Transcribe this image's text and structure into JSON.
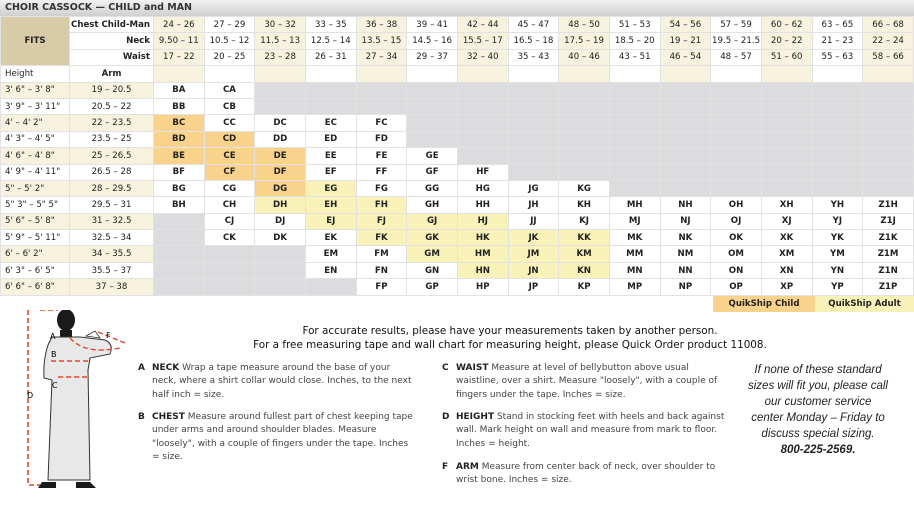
{
  "title": "CHOIR CASSOCK — CHILD and MAN",
  "fits_label": "FITS",
  "row_labels": {
    "chest": "Chest Child-Man",
    "neck": "Neck",
    "waist": "Waist",
    "height": "Height",
    "arm": "Arm"
  },
  "sizes": [
    {
      "chest": "24 – 26",
      "neck": "9.50 – 11",
      "waist": "17 – 22"
    },
    {
      "chest": "27 – 29",
      "neck": "10.5 – 12",
      "waist": "20 – 25"
    },
    {
      "chest": "30 – 32",
      "neck": "11.5 – 13",
      "waist": "23 – 28"
    },
    {
      "chest": "33 – 35",
      "neck": "12.5 – 14",
      "waist": "26 – 31"
    },
    {
      "chest": "36 – 38",
      "neck": "13.5 – 15",
      "waist": "27 – 34"
    },
    {
      "chest": "39 – 41",
      "neck": "14.5 – 16",
      "waist": "29 – 37"
    },
    {
      "chest": "42 – 44",
      "neck": "15.5 – 17",
      "waist": "32 – 40"
    },
    {
      "chest": "45 – 47",
      "neck": "16.5 – 18",
      "waist": "35 – 43"
    },
    {
      "chest": "48 – 50",
      "neck": "17.5 – 19",
      "waist": "40 – 46"
    },
    {
      "chest": "51 – 53",
      "neck": "18.5 – 20",
      "waist": "43 – 51"
    },
    {
      "chest": "54 – 56",
      "neck": "19 – 21",
      "waist": "46 – 54"
    },
    {
      "chest": "57 – 59",
      "neck": "19.5 – 21.5",
      "waist": "48 – 57"
    },
    {
      "chest": "60 – 62",
      "neck": "20 – 22",
      "waist": "51 – 60"
    },
    {
      "chest": "63 – 65",
      "neck": "21 – 23",
      "waist": "55 – 63"
    },
    {
      "chest": "66 – 68",
      "neck": "22 – 24",
      "waist": "58 – 66"
    }
  ],
  "rows": [
    {
      "height": "3' 6\" – 3' 8\"",
      "arm": "19 – 20.5",
      "cells": [
        "BA:w",
        "CA:w",
        ":g",
        ":g",
        ":g",
        ":g",
        ":g",
        ":g",
        ":g",
        ":g",
        ":g",
        ":g",
        ":g",
        ":g",
        ":g"
      ]
    },
    {
      "height": "3' 9\" – 3' 11\"",
      "arm": "20.5 – 22",
      "cells": [
        "BB:w",
        "CB:w",
        ":g",
        ":g",
        ":g",
        ":g",
        ":g",
        ":g",
        ":g",
        ":g",
        ":g",
        ":g",
        ":g",
        ":g",
        ":g"
      ]
    },
    {
      "height": "4' – 4' 2\"",
      "arm": "22 – 23.5",
      "cells": [
        "BC:o",
        "CC:w",
        "DC:w",
        "EC:w",
        "FC:w",
        ":g",
        ":g",
        ":g",
        ":g",
        ":g",
        ":g",
        ":g",
        ":g",
        ":g",
        ":g"
      ]
    },
    {
      "height": "4' 3\" – 4' 5\"",
      "arm": "23.5 – 25",
      "cells": [
        "BD:o",
        "CD:o",
        "DD:w",
        "ED:w",
        "FD:w",
        ":g",
        ":g",
        ":g",
        ":g",
        ":g",
        ":g",
        ":g",
        ":g",
        ":g",
        ":g"
      ]
    },
    {
      "height": "4' 6\" – 4' 8\"",
      "arm": "25 – 26.5",
      "cells": [
        "BE:o",
        "CE:o",
        "DE:o",
        "EE:w",
        "FE:w",
        "GE:w",
        ":g",
        ":g",
        ":g",
        ":g",
        ":g",
        ":g",
        ":g",
        ":g",
        ":g"
      ]
    },
    {
      "height": "4' 9\" – 4' 11\"",
      "arm": "26.5 – 28",
      "cells": [
        "BF:w",
        "CF:o",
        "DF:o",
        "EF:w",
        "FF:w",
        "GF:w",
        "HF:w",
        ":g",
        ":g",
        ":g",
        ":g",
        ":g",
        ":g",
        ":g",
        ":g"
      ]
    },
    {
      "height": "5\" – 5' 2\"",
      "arm": "28 – 29.5",
      "cells": [
        "BG:w",
        "CG:w",
        "DG:o",
        "EG:y",
        "FG:w",
        "GG:w",
        "HG:w",
        "JG:w",
        "KG:w",
        ":g",
        ":g",
        ":g",
        ":g",
        ":g",
        ":g"
      ]
    },
    {
      "height": "5\" 3\" – 5\" 5\"",
      "arm": "29.5 – 31",
      "cells": [
        "BH:w",
        "CH:w",
        "DH:y",
        "EH:y",
        "FH:y",
        "GH:w",
        "HH:w",
        "JH:w",
        "KH:w",
        "MH:w",
        "NH:w",
        "OH:w",
        "XH:w",
        "YH:w",
        "Z1H:w"
      ]
    },
    {
      "height": "5' 6\" – 5' 8\"",
      "arm": "31 – 32.5",
      "cells": [
        ":g",
        "CJ:w",
        "DJ:w",
        "EJ:y",
        "FJ:y",
        "GJ:y",
        "HJ:y",
        "JJ:w",
        "KJ:w",
        "MJ:w",
        "NJ:w",
        "OJ:w",
        "XJ:w",
        "YJ:w",
        "Z1J:w"
      ]
    },
    {
      "height": "5' 9\" – 5' 11\"",
      "arm": "32.5 – 34",
      "cells": [
        ":g",
        "CK:w",
        "DK:w",
        "EK:w",
        "FK:y",
        "GK:y",
        "HK:y",
        "JK:y",
        "KK:y",
        "MK:w",
        "NK:w",
        "OK:w",
        "XK:w",
        "YK:w",
        "Z1K:w"
      ]
    },
    {
      "height": "6' – 6' 2\"",
      "arm": "34 – 35.5",
      "cells": [
        ":g",
        ":g",
        ":g",
        "EM:w",
        "FM:w",
        "GM:y",
        "HM:y",
        "JM:y",
        "KM:y",
        "MM:w",
        "NM:w",
        "OM:w",
        "XM:w",
        "YM:w",
        "Z1M:w"
      ]
    },
    {
      "height": "6' 3\" – 6' 5\"",
      "arm": "35.5 – 37",
      "cells": [
        ":g",
        ":g",
        ":g",
        "EN:w",
        "FN:w",
        "GN:w",
        "HN:y",
        "JN:y",
        "KN:y",
        "MN:w",
        "NN:w",
        "ON:w",
        "XN:w",
        "YN:w",
        "Z1N:w"
      ]
    },
    {
      "height": "6' 6\" – 6' 8\"",
      "arm": "37 – 38",
      "cells": [
        ":g",
        ":g",
        ":g",
        ":g",
        "FP:w",
        "GP:w",
        "HP:w",
        "JP:w",
        "KP:w",
        "MP:w",
        "NP:w",
        "OP:w",
        "XP:w",
        "YP:w",
        "Z1P:w"
      ]
    }
  ],
  "legend": {
    "child": "QuikShip Child",
    "adult": "QuikShip  Adult"
  },
  "colors": {
    "quikship_child": "#f9d38b",
    "quikship_adult": "#f8f2b8",
    "unavailable": "#dcdcde",
    "beige": "#f7f2dd",
    "fits": "#d8cba7",
    "measure_line": "#e8452c"
  },
  "figure_labels": [
    "A",
    "B",
    "C",
    "D",
    "F"
  ],
  "intro": [
    "For accurate results, please have your measurements taken by another person.",
    "For a free measuring tape and wall chart for measuring height, please Quick Order product 11008."
  ],
  "notes": [
    {
      "key": "A",
      "title": "NECK",
      "text": "Wrap a tape measure around the base of your neck, where a shirt collar would close. Inches, to the next half inch = size."
    },
    {
      "key": "B",
      "title": "CHEST",
      "text": "Measure around fullest part of chest keeping tape under arms and around shoulder blades. Measure \"loosely\", with a couple of fingers under the tape. Inches = size."
    },
    {
      "key": "C",
      "title": "WAIST",
      "text": "Measure at level of bellybutton above usual waistline, over a shirt. Measure \"loosely\", with a couple of fingers under the tape. Inches = size."
    },
    {
      "key": "D",
      "title": "HEIGHT",
      "text": "Stand in stocking feet with heels and back against wall. Mark height on wall and measure from mark to floor. Inches = height."
    },
    {
      "key": "F",
      "title": "ARM",
      "text": "Measure from center back of neck, over shoulder to wrist bone. Inches = size."
    }
  ],
  "special": {
    "text": "If none of these standard sizes will fit you, please call our customer service center Monday – Friday to discuss special sizing.",
    "phone": "800-225-2569."
  }
}
